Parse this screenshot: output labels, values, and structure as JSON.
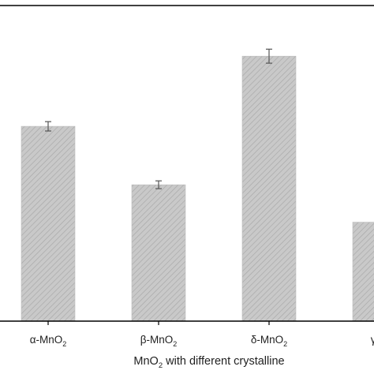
{
  "chart_data": {
    "type": "bar",
    "categories": [
      "α-MnO",
      "β-MnO",
      "δ-MnO",
      "γ-M"
    ],
    "category_subscripts": [
      "2",
      "2",
      "2",
      ""
    ],
    "values": [
      250,
      175,
      340,
      127
    ],
    "errors": [
      6,
      5,
      9,
      0
    ],
    "xlabel_main": "MnO",
    "xlabel_sub": "2",
    "xlabel_rest": " with different crystalline",
    "ylim": [
      0,
      405
    ],
    "grid": false,
    "bar_fill": "#c9c9c9",
    "bar_hatch": "#a9a9a9",
    "error_color": "#555555",
    "axis_color": "#000000"
  }
}
